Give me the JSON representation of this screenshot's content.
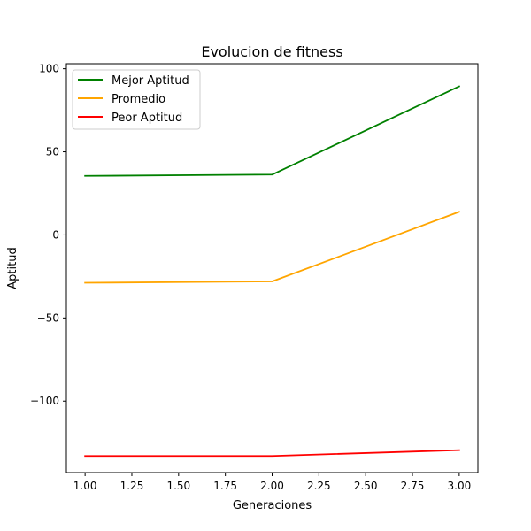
{
  "chart_data": {
    "type": "line",
    "title": "Evolucion de fitness",
    "xlabel": "Generaciones",
    "ylabel": "Aptitud",
    "xlim": [
      0.9,
      3.1
    ],
    "ylim": [
      -143,
      103
    ],
    "xticks": [
      1.0,
      1.25,
      1.5,
      1.75,
      2.0,
      2.25,
      2.5,
      2.75,
      3.0
    ],
    "xtick_labels": [
      "1.00",
      "1.25",
      "1.50",
      "1.75",
      "2.00",
      "2.25",
      "2.50",
      "2.75",
      "3.00"
    ],
    "yticks": [
      100,
      50,
      0,
      -50,
      -100
    ],
    "ytick_labels": [
      "100",
      "50",
      "0",
      "−50",
      "−100"
    ],
    "grid": false,
    "legend_position": "top-left",
    "x": [
      1,
      2,
      3
    ],
    "series": [
      {
        "name": "Mejor Aptitud",
        "color": "#008000",
        "values": [
          35.5,
          36.3,
          89.4
        ]
      },
      {
        "name": "Promedio",
        "color": "#FFA500",
        "values": [
          -28.8,
          -28.0,
          13.9
        ]
      },
      {
        "name": "Peor Aptitud",
        "color": "#FF0000",
        "values": [
          -133.0,
          -133.0,
          -129.5
        ]
      }
    ]
  }
}
